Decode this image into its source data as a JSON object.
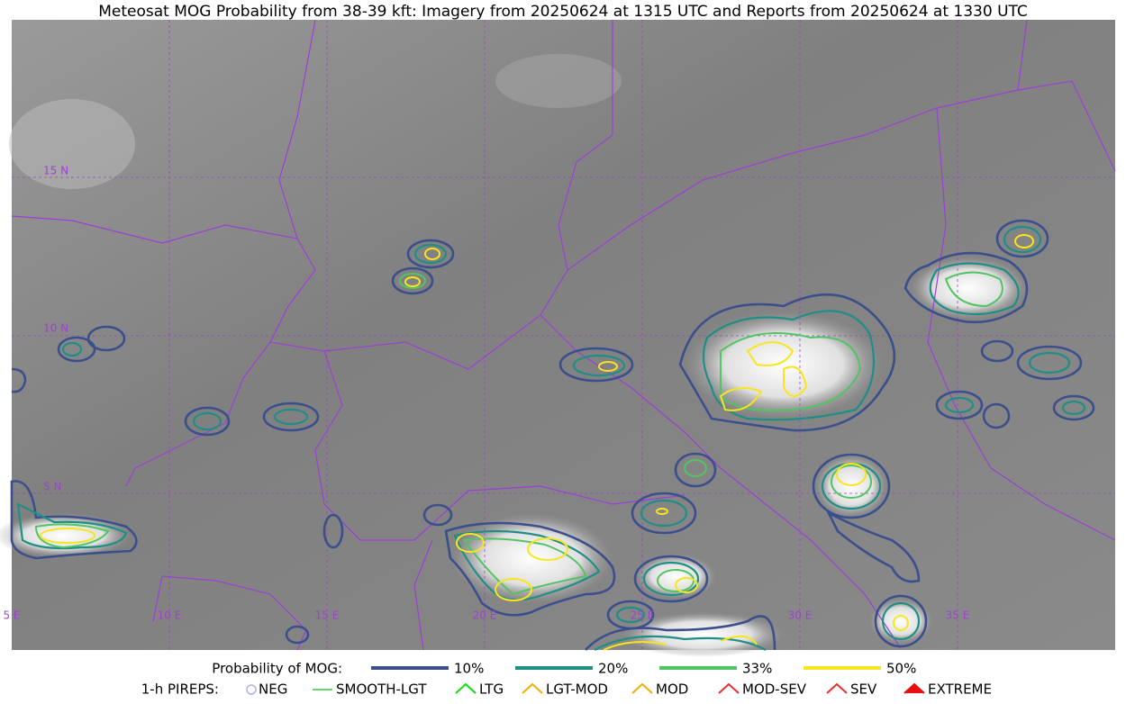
{
  "title": "Meteosat MOG Probability from 38-39 kft: Imagery from 20250624 at 1315 UTC and Reports from 20250624 at 1330 UTC",
  "lat_labels": [
    "15 N",
    "10 N",
    "5 N"
  ],
  "lon_labels": [
    "5 E",
    "10 E",
    "15 E",
    "20 E",
    "25 E",
    "30 E",
    "35 E"
  ],
  "legend": {
    "mog": {
      "title": "Probability of MOG:",
      "items": [
        {
          "label": "10%",
          "color": "#3b4f8c"
        },
        {
          "label": "20%",
          "color": "#1f8f86"
        },
        {
          "label": "33%",
          "color": "#52c463"
        },
        {
          "label": "50%",
          "color": "#f9e51e"
        }
      ]
    },
    "pireps": {
      "title": "1-h PIREPS:",
      "items": [
        {
          "label": "NEG",
          "color": "#b0b0f0"
        },
        {
          "label": "SMOOTH-LGT",
          "color": "#33cc33"
        },
        {
          "label": "LTG",
          "color": "#11dd11"
        },
        {
          "label": "LGT-MOD",
          "color": "#f0b000"
        },
        {
          "label": "MOD",
          "color": "#f0b000"
        },
        {
          "label": "MOD-SEV",
          "color": "#e83030"
        },
        {
          "label": "SEV",
          "color": "#e83030"
        },
        {
          "label": "EXTREME",
          "color": "#e81010"
        }
      ]
    }
  }
}
